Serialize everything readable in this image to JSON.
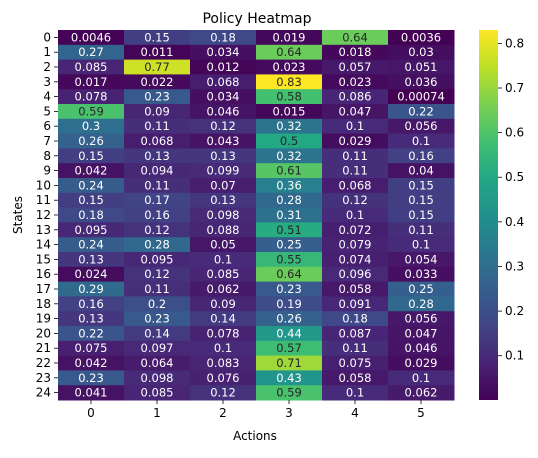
{
  "chart_data": {
    "type": "heatmap",
    "title": "Policy Heatmap",
    "xlabel": "Actions",
    "ylabel": "States",
    "x_categories": [
      "0",
      "1",
      "2",
      "3",
      "4",
      "5"
    ],
    "y_categories": [
      "0",
      "1",
      "2",
      "3",
      "4",
      "5",
      "6",
      "7",
      "8",
      "9",
      "10",
      "11",
      "12",
      "13",
      "14",
      "15",
      "16",
      "17",
      "18",
      "19",
      "20",
      "21",
      "22",
      "23",
      "24"
    ],
    "values": [
      [
        0.0046,
        0.15,
        0.18,
        0.019,
        0.64,
        0.0036
      ],
      [
        0.27,
        0.011,
        0.034,
        0.64,
        0.018,
        0.03
      ],
      [
        0.085,
        0.77,
        0.012,
        0.023,
        0.057,
        0.051
      ],
      [
        0.017,
        0.022,
        0.068,
        0.83,
        0.023,
        0.036
      ],
      [
        0.078,
        0.23,
        0.034,
        0.58,
        0.086,
        0.00074
      ],
      [
        0.59,
        0.09,
        0.046,
        0.015,
        0.047,
        0.22
      ],
      [
        0.3,
        0.11,
        0.12,
        0.32,
        0.1,
        0.056
      ],
      [
        0.26,
        0.068,
        0.043,
        0.5,
        0.029,
        0.1
      ],
      [
        0.15,
        0.13,
        0.13,
        0.32,
        0.11,
        0.16
      ],
      [
        0.042,
        0.094,
        0.099,
        0.61,
        0.11,
        0.04
      ],
      [
        0.24,
        0.11,
        0.07,
        0.36,
        0.068,
        0.15
      ],
      [
        0.15,
        0.17,
        0.13,
        0.28,
        0.12,
        0.15
      ],
      [
        0.18,
        0.16,
        0.098,
        0.31,
        0.1,
        0.15
      ],
      [
        0.095,
        0.12,
        0.088,
        0.51,
        0.072,
        0.11
      ],
      [
        0.24,
        0.28,
        0.05,
        0.25,
        0.079,
        0.1
      ],
      [
        0.13,
        0.095,
        0.1,
        0.55,
        0.074,
        0.054
      ],
      [
        0.024,
        0.12,
        0.085,
        0.64,
        0.096,
        0.033
      ],
      [
        0.29,
        0.11,
        0.062,
        0.23,
        0.058,
        0.25
      ],
      [
        0.16,
        0.2,
        0.09,
        0.19,
        0.091,
        0.28
      ],
      [
        0.13,
        0.23,
        0.14,
        0.26,
        0.18,
        0.056
      ],
      [
        0.22,
        0.14,
        0.078,
        0.44,
        0.087,
        0.047
      ],
      [
        0.075,
        0.097,
        0.1,
        0.57,
        0.11,
        0.046
      ],
      [
        0.042,
        0.064,
        0.083,
        0.71,
        0.075,
        0.029
      ],
      [
        0.23,
        0.098,
        0.076,
        0.43,
        0.058,
        0.1
      ],
      [
        0.041,
        0.085,
        0.12,
        0.59,
        0.1,
        0.062
      ]
    ],
    "colormap": "viridis",
    "color_range": [
      0.00074,
      0.83
    ],
    "colorbar_ticks": [
      "0.1",
      "0.2",
      "0.3",
      "0.4",
      "0.5",
      "0.6",
      "0.7",
      "0.8"
    ],
    "annotated": true,
    "grid": false,
    "legend": "colorbar-right"
  }
}
